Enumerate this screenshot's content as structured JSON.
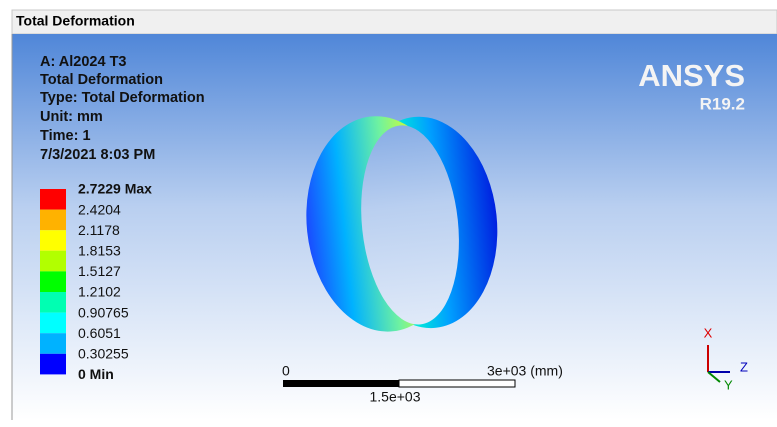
{
  "window": {
    "title": "Total Deformation"
  },
  "info": [
    "A: Al2024 T3",
    "Total Deformation",
    "Type: Total Deformation",
    "Unit: mm",
    "Time: 1",
    "7/3/2021 8:03 PM"
  ],
  "legend": {
    "labels": [
      "2.7229 Max",
      "2.4204",
      "2.1178",
      "1.8153",
      "1.5127",
      "1.2102",
      "0.90765",
      "0.6051",
      "0.30255",
      "0 Min"
    ],
    "colors": [
      "#ff0000",
      "#ffb200",
      "#ffff00",
      "#b2ff00",
      "#00ff00",
      "#00ffb2",
      "#00ffff",
      "#00b2ff",
      "#0000ff"
    ]
  },
  "logo": {
    "name": "ANSYS",
    "version": "R19.2"
  },
  "scale_bar": {
    "start": "0",
    "end": "3e+03 (mm)",
    "mid": "1.5e+03"
  },
  "triad": {
    "x": "X",
    "y": "Y",
    "z": "Z"
  }
}
